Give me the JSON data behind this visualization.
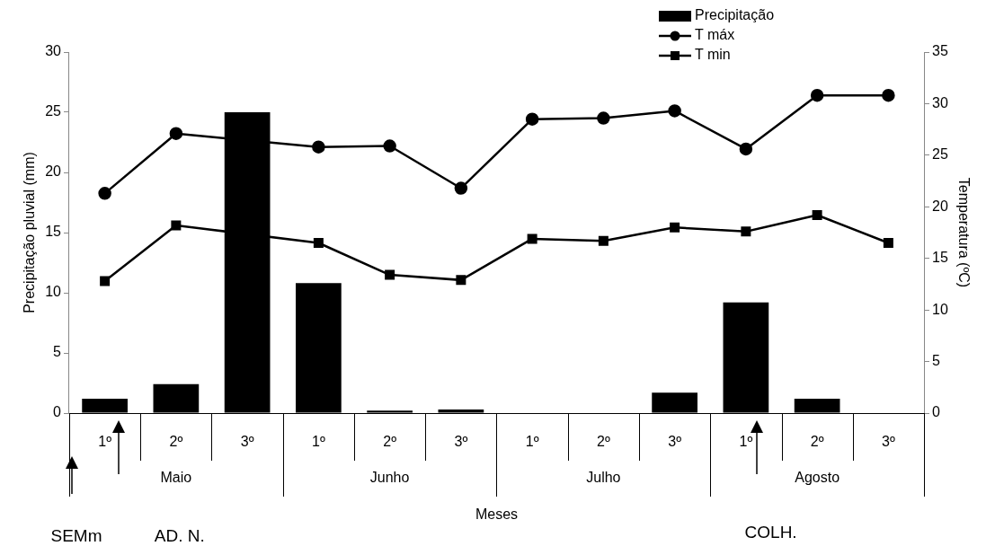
{
  "chart_data": {
    "type": "bar",
    "xlabel": "Meses",
    "ylabel": "Precipitação pluvial (mm)",
    "y2label": "Temperatura (ºC)",
    "categories": [
      "1º",
      "2º",
      "3º",
      "1º",
      "2º",
      "3º",
      "1º",
      "2º",
      "3º",
      "1º",
      "2º",
      "3º"
    ],
    "series": [
      {
        "name": "Precipitação",
        "color": "#000000",
        "values": [
          1.2,
          2.4,
          25.0,
          10.8,
          0.2,
          0.3,
          0,
          0,
          1.7,
          9.2,
          1.2,
          0
        ]
      },
      {
        "name": "T máx",
        "type": "line",
        "axis": "y2",
        "marker": "circle",
        "color": "#000000",
        "values": [
          21.3,
          27.1,
          null,
          25.8,
          25.9,
          21.8,
          28.5,
          28.6,
          29.3,
          25.6,
          30.8,
          30.8
        ]
      },
      {
        "name": "T min",
        "type": "line",
        "axis": "y2",
        "marker": "square",
        "color": "#000000",
        "values": [
          12.8,
          18.2,
          null,
          16.5,
          13.4,
          12.9,
          16.9,
          16.7,
          18.0,
          17.6,
          19.2,
          16.5
        ]
      }
    ],
    "ylim": [
      0,
      30
    ],
    "yticks": [
      0,
      5,
      10,
      15,
      20,
      25,
      30
    ],
    "y2lim": [
      0,
      35
    ],
    "y2ticks": [
      0,
      5,
      10,
      15,
      20,
      25,
      30,
      35
    ],
    "grid": false,
    "legend": "top right",
    "line_style": "solid",
    "annotations": [
      "Maio",
      "Junho",
      "Julho",
      "Agosto",
      "SEMm",
      "AD. N.",
      "COLH."
    ]
  }
}
